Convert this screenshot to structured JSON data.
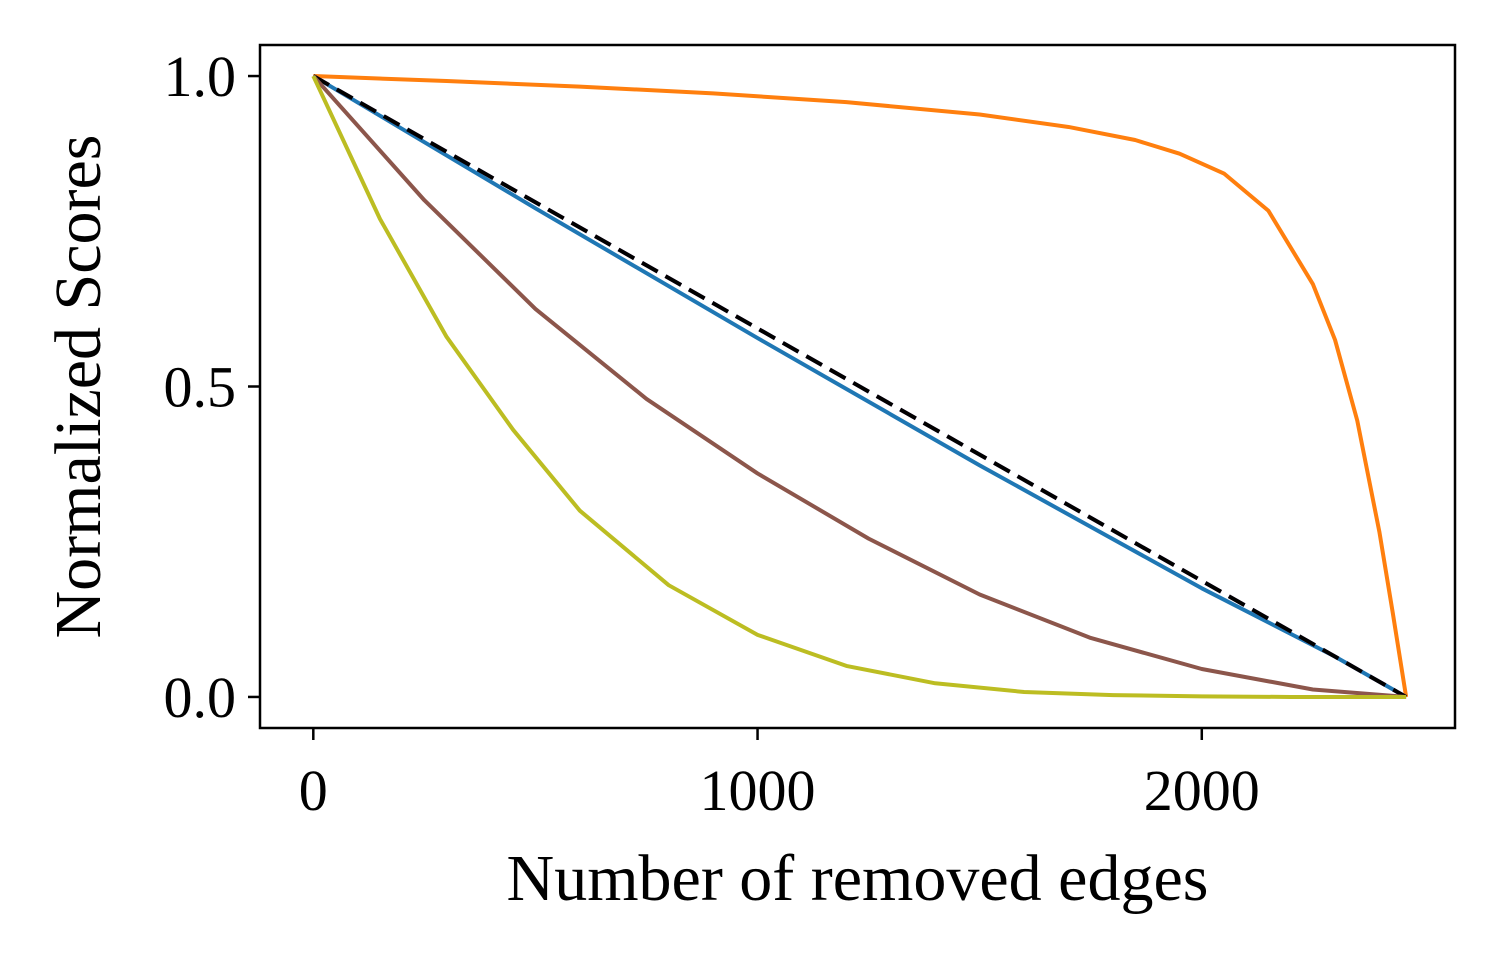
{
  "chart_data": {
    "type": "line",
    "title": "",
    "xlabel": "Number of removed edges",
    "ylabel": "Normalized Scores",
    "xlim": [
      -120,
      2570
    ],
    "ylim": [
      -0.05,
      1.05
    ],
    "xticks": [
      0,
      1000,
      2000
    ],
    "yticks": [
      0.0,
      0.5,
      1.0
    ],
    "xtick_labels": [
      "0",
      "1000",
      "2000"
    ],
    "ytick_labels": [
      "0.0",
      "0.5",
      "1.0"
    ],
    "grid": false,
    "legend": "none",
    "series": [
      {
        "color": "#ff7f0e",
        "x": [
          0,
          300,
          600,
          900,
          1200,
          1500,
          1700,
          1850,
          1950,
          2050,
          2150,
          2250,
          2300,
          2350,
          2400,
          2430,
          2460
        ],
        "y": [
          1.0,
          0.992,
          0.983,
          0.972,
          0.958,
          0.938,
          0.918,
          0.897,
          0.875,
          0.843,
          0.783,
          0.665,
          0.575,
          0.445,
          0.265,
          0.135,
          0.0
        ]
      },
      {
        "color": "#1f77b4",
        "x": [
          0,
          500,
          1000,
          1500,
          2000,
          2300,
          2460
        ],
        "y": [
          1.0,
          0.787,
          0.578,
          0.373,
          0.175,
          0.065,
          0.0
        ]
      },
      {
        "color": "#9467bd",
        "dash": "dashed",
        "x": [
          0,
          2460
        ],
        "y": [
          1.0,
          0.0
        ]
      },
      {
        "color": "#000000",
        "dash": "dashed",
        "x": [
          0,
          2460
        ],
        "y": [
          1.0,
          0.0
        ]
      },
      {
        "color": "#8c564b",
        "x": [
          0,
          250,
          500,
          750,
          1000,
          1250,
          1500,
          1750,
          2000,
          2250,
          2460
        ],
        "y": [
          1.0,
          0.8,
          0.625,
          0.48,
          0.36,
          0.255,
          0.165,
          0.095,
          0.045,
          0.012,
          0.0
        ]
      },
      {
        "color": "#bcbd22",
        "x": [
          0,
          150,
          300,
          450,
          600,
          800,
          1000,
          1200,
          1400,
          1600,
          1800,
          2000,
          2200,
          2460
        ],
        "y": [
          1.0,
          0.77,
          0.58,
          0.43,
          0.3,
          0.18,
          0.1,
          0.05,
          0.022,
          0.008,
          0.003,
          0.001,
          0.0,
          0.0
        ]
      }
    ]
  }
}
